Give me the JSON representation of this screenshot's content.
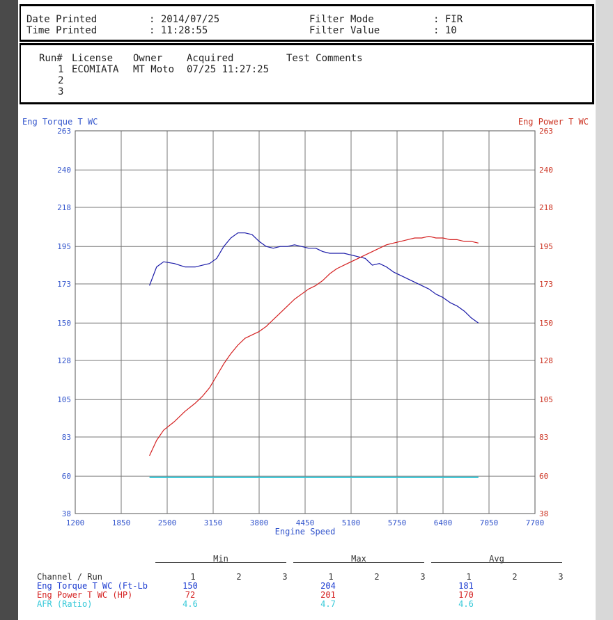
{
  "header": {
    "date_label": "Date Printed",
    "date_value": ": 2014/07/25",
    "time_label": "Time Printed",
    "time_value": ": 11:28:55",
    "filter_mode_label": "Filter Mode",
    "filter_mode_value": ": FIR",
    "filter_value_label": "Filter Value",
    "filter_value_value": ": 10"
  },
  "runs": {
    "headers": [
      "Run#",
      "License",
      "Owner",
      "Acquired",
      "Test Comments"
    ],
    "rows": [
      {
        "run": "1",
        "license": "ECOMIATA",
        "owner": "MT Moto",
        "acquired": "07/25 11:27:25",
        "comments": ""
      },
      {
        "run": "2",
        "license": "",
        "owner": "",
        "acquired": "",
        "comments": ""
      },
      {
        "run": "3",
        "license": "",
        "owner": "",
        "acquired": "",
        "comments": ""
      }
    ]
  },
  "chart_data": {
    "type": "line",
    "title": "",
    "xlabel": "Engine Speed",
    "ylabel_left": "Eng Torque T WC",
    "ylabel_right": "Eng Power T WC",
    "xlim": [
      1200,
      7700
    ],
    "ylim": [
      38,
      263
    ],
    "x_ticks": [
      "1200",
      "1850",
      "2500",
      "3150",
      "3800",
      "4450",
      "5100",
      "5750",
      "6400",
      "7050",
      "7700"
    ],
    "y_ticks": [
      "263",
      "240",
      "218",
      "195",
      "173",
      "150",
      "128",
      "105",
      "83",
      "60",
      "38"
    ],
    "grid": true,
    "colors": {
      "torque": "#1a1aa8",
      "power": "#d42020",
      "afr": "#33c8d8",
      "left_axis": "#3355cc",
      "right_axis": "#cc3322"
    },
    "series": [
      {
        "name": "Eng Torque T WC",
        "color": "#1a1aa8",
        "x": [
          2250,
          2350,
          2450,
          2600,
          2750,
          2900,
          3000,
          3100,
          3200,
          3300,
          3400,
          3500,
          3600,
          3700,
          3800,
          3900,
          4000,
          4100,
          4200,
          4300,
          4400,
          4500,
          4600,
          4700,
          4800,
          4900,
          5000,
          5100,
          5200,
          5300,
          5400,
          5500,
          5600,
          5700,
          5800,
          5900,
          6000,
          6100,
          6200,
          6300,
          6400,
          6500,
          6600,
          6700,
          6800,
          6900
        ],
        "y": [
          172,
          183,
          186,
          185,
          183,
          183,
          184,
          185,
          188,
          195,
          200,
          203,
          203,
          202,
          198,
          195,
          194,
          195,
          195,
          196,
          195,
          194,
          194,
          192,
          191,
          191,
          191,
          190,
          189,
          188,
          184,
          185,
          183,
          180,
          178,
          176,
          174,
          172,
          170,
          167,
          165,
          162,
          160,
          157,
          153,
          150
        ]
      },
      {
        "name": "Eng Power T WC",
        "color": "#d42020",
        "x": [
          2250,
          2350,
          2450,
          2600,
          2750,
          2900,
          3000,
          3100,
          3200,
          3300,
          3400,
          3500,
          3600,
          3700,
          3800,
          3900,
          4000,
          4100,
          4200,
          4300,
          4400,
          4500,
          4600,
          4700,
          4800,
          4900,
          5000,
          5100,
          5200,
          5300,
          5400,
          5500,
          5600,
          5700,
          5800,
          5900,
          6000,
          6100,
          6200,
          6300,
          6400,
          6500,
          6600,
          6700,
          6800,
          6900
        ],
        "y": [
          72,
          81,
          87,
          92,
          98,
          103,
          107,
          112,
          119,
          126,
          132,
          137,
          141,
          143,
          145,
          148,
          152,
          156,
          160,
          164,
          167,
          170,
          172,
          175,
          179,
          182,
          184,
          186,
          188,
          190,
          192,
          194,
          196,
          197,
          198,
          199,
          200,
          200,
          201,
          200,
          200,
          199,
          199,
          198,
          198,
          197
        ]
      },
      {
        "name": "AFR",
        "color": "#33c8d8",
        "x": [
          2250,
          6900
        ],
        "y": [
          59.3,
          59.3
        ]
      }
    ]
  },
  "stats": {
    "groups": [
      "Min",
      "Max",
      "Avg"
    ],
    "channel_header": "Channel / Run",
    "run_numbers": [
      "1",
      "2",
      "3"
    ],
    "rows": [
      {
        "label": "Eng Torque T WC (Ft-Lb",
        "color": "#1a3ad0",
        "min": "150",
        "max": "204",
        "avg": "181"
      },
      {
        "label": "Eng Power T WC (HP)",
        "color": "#d42020",
        "min": "72",
        "max": "201",
        "avg": "170"
      },
      {
        "label": "AFR (Ratio)",
        "color": "#33c8d8",
        "min": "4.6",
        "max": "4.7",
        "avg": "4.6"
      }
    ]
  }
}
